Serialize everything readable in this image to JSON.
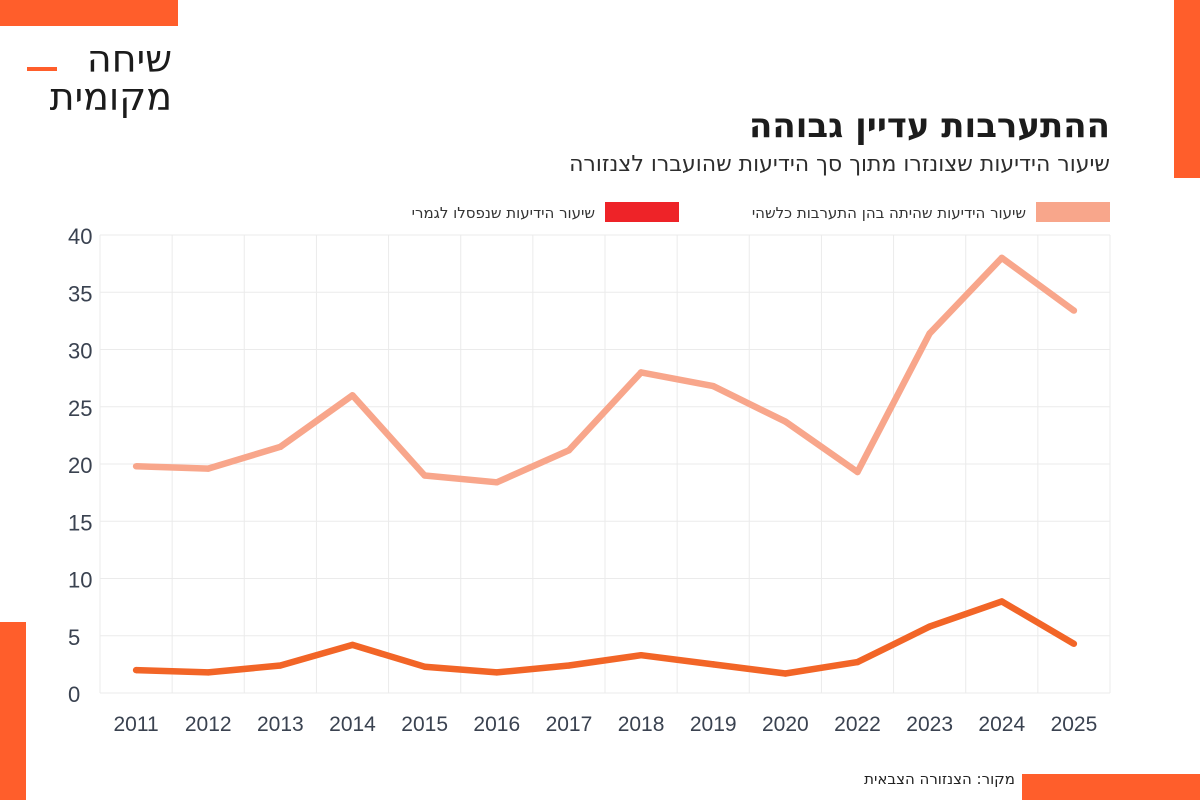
{
  "logo": {
    "line1": "שיחה",
    "line2": "מקומית"
  },
  "colors": {
    "accent": "#ff5e2b",
    "series1": "#f8a68b",
    "series2": "#f26527",
    "legend_swatch2": "#ee2328",
    "grid": "#ebebeb",
    "axis_text": "#3a4250"
  },
  "source_text": "מקור: הצנזורה הצבאית",
  "chart_data": {
    "type": "line",
    "title": "ההתערבות עדיין גבוהה",
    "subtitle": "שיעור הידיעות שצונזרו מתוך סך הידיעות שהועברו לצנזורה",
    "categories": [
      "2011",
      "2012",
      "2013",
      "2014",
      "2015",
      "2016",
      "2017",
      "2018",
      "2019",
      "2020",
      "2022",
      "2023",
      "2024",
      "2025"
    ],
    "series": [
      {
        "name": "שיעור הידיעות שהיתה בהן התערבות כלשהי",
        "values": [
          19.8,
          19.6,
          21.5,
          26.0,
          19.0,
          18.4,
          21.2,
          28.0,
          26.8,
          23.7,
          19.3,
          31.4,
          38.0,
          33.4
        ]
      },
      {
        "name": "שיעור הידיעות שנפסלו לגמרי",
        "values": [
          2.0,
          1.8,
          2.4,
          4.2,
          2.3,
          1.8,
          2.4,
          3.3,
          2.5,
          1.7,
          2.7,
          5.8,
          8.0,
          4.3
        ]
      }
    ],
    "y_ticks": [
      0,
      5,
      10,
      15,
      20,
      25,
      30,
      35,
      40
    ],
    "ylim": [
      0,
      40
    ],
    "grid": true,
    "legend_position": "top-right"
  }
}
